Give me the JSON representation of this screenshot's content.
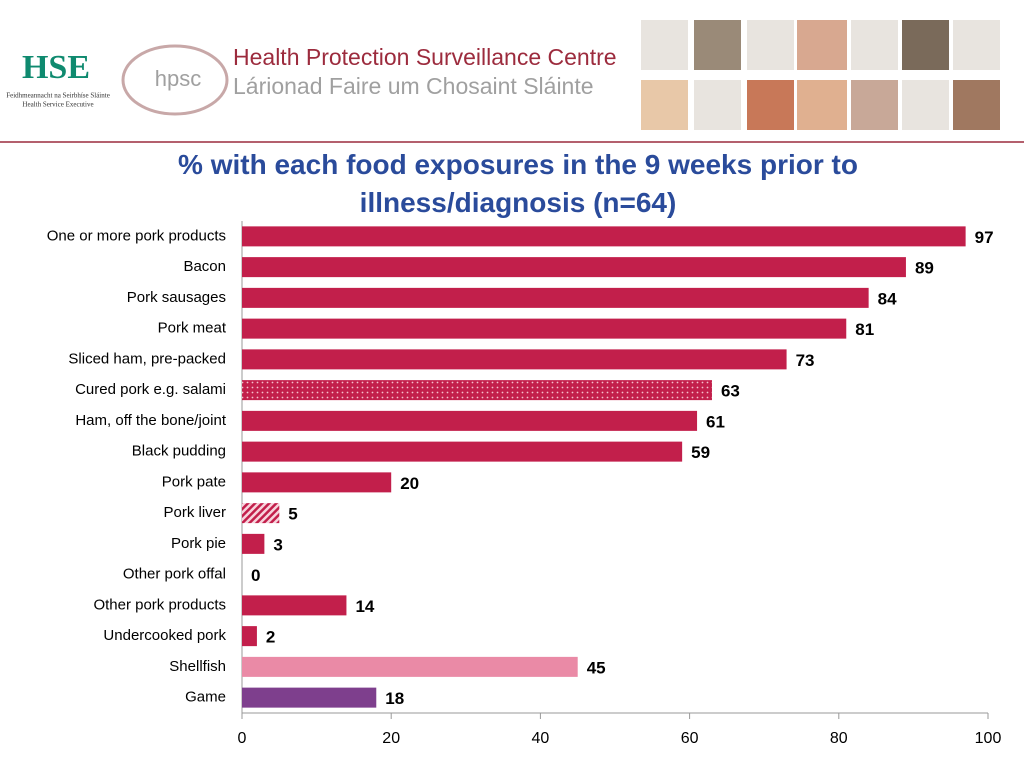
{
  "header": {
    "hse_logo_text": "HSE",
    "hse_irish": "Feidhmeannacht na Seirbhíse Sláinte",
    "hse_english": "Health Service Executive",
    "hpsc_logo_text": "hpsc",
    "centre_name": "Health Protection Surveillance Centre",
    "centre_name_irish": "Lárionad Faire um Chosaint Sláinte"
  },
  "chart_data": {
    "type": "hbar",
    "title": "% with each food exposures in the 9 weeks prior to illness/diagnosis (n=64)",
    "categories": [
      "One or more pork products",
      "Bacon",
      "Pork sausages",
      "Pork meat",
      "Sliced ham, pre-packed",
      "Cured pork e.g. salami",
      "Ham, off the bone/joint",
      "Black pudding",
      "Pork pate",
      "Pork liver",
      "Pork pie",
      "Other pork offal",
      "Other pork products",
      "Undercooked pork",
      "Shellfish",
      "Game"
    ],
    "values": [
      97,
      89,
      84,
      81,
      73,
      63,
      61,
      59,
      20,
      5,
      3,
      0,
      14,
      2,
      45,
      18
    ],
    "colors": [
      "#c21f4b",
      "#c21f4b",
      "#c21f4b",
      "#c21f4b",
      "#c21f4b",
      "#c21f4b",
      "#c21f4b",
      "#c21f4b",
      "#c21f4b",
      "#c21f4b",
      "#c21f4b",
      "#c21f4b",
      "#c21f4b",
      "#c21f4b",
      "#ea8aa6",
      "#7e3f8d"
    ],
    "bar_styles": [
      "solid",
      "solid",
      "solid",
      "solid",
      "solid",
      "dotted",
      "solid",
      "solid",
      "solid",
      "hatched",
      "solid",
      "solid",
      "solid",
      "solid",
      "solid",
      "solid"
    ],
    "xlim": [
      0,
      100
    ],
    "xticks": [
      0,
      20,
      40,
      60,
      80,
      100
    ]
  }
}
